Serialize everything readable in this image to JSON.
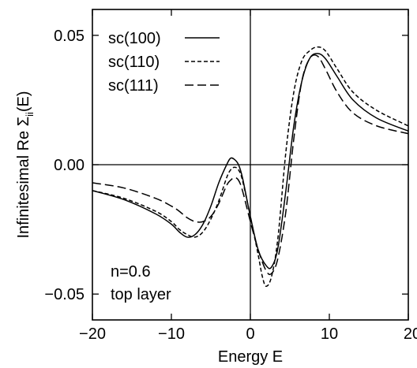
{
  "chart_data": {
    "type": "line",
    "xlabel": "Energy E",
    "ylabel": {
      "prefix": "Infinitesimal  Re ",
      "symbol": "Σ",
      "subscript": "ii",
      "suffix": "(E)"
    },
    "xlim": [
      -20,
      20
    ],
    "ylim": [
      -0.06,
      0.06
    ],
    "xticks": [
      -20,
      -10,
      0,
      10,
      20
    ],
    "xtick_labels": [
      "−20",
      "−10",
      "0",
      "10",
      "20"
    ],
    "yticks": [
      -0.05,
      0.0,
      0.05
    ],
    "ytick_labels": [
      "−0.05",
      "0.00",
      "0.05"
    ],
    "reference_lines": {
      "y": 0,
      "x": 0
    },
    "grid": false,
    "legend_position": "top-left",
    "annotations": [
      "n=0.6",
      "top layer"
    ],
    "series": [
      {
        "name": "sc(100)",
        "dash": "solid",
        "x": [
          -20,
          -16,
          -12,
          -10,
          -9,
          -8,
          -7,
          -6,
          -5,
          -4,
          -3,
          -2.5,
          -2,
          -1.5,
          -1,
          0,
          1,
          2,
          2.7,
          3.5,
          4.5,
          5.5,
          6.5,
          7.5,
          8.5,
          9.5,
          11,
          13,
          16,
          20
        ],
        "y": [
          -0.01,
          -0.0135,
          -0.019,
          -0.023,
          -0.026,
          -0.028,
          -0.027,
          -0.023,
          -0.016,
          -0.007,
          0.0,
          0.0025,
          0.002,
          0.0,
          -0.005,
          -0.02,
          -0.033,
          -0.039,
          -0.0395,
          -0.032,
          -0.01,
          0.015,
          0.032,
          0.041,
          0.043,
          0.041,
          0.034,
          0.025,
          0.018,
          0.013
        ]
      },
      {
        "name": "sc(110)",
        "dash": "short-dash",
        "x": [
          -20,
          -16,
          -12,
          -10,
          -9,
          -8,
          -7,
          -6,
          -5,
          -4,
          -3,
          -2.5,
          -2,
          -1.5,
          -1,
          0,
          1,
          1.5,
          2,
          2.7,
          3.5,
          4.5,
          5.5,
          6.5,
          7.5,
          8.5,
          9.5,
          11,
          13,
          16,
          20
        ],
        "y": [
          -0.01,
          -0.013,
          -0.018,
          -0.022,
          -0.025,
          -0.027,
          -0.028,
          -0.026,
          -0.021,
          -0.014,
          -0.005,
          -0.002,
          -0.001,
          -0.002,
          -0.006,
          -0.02,
          -0.035,
          -0.043,
          -0.047,
          -0.043,
          -0.028,
          0.005,
          0.028,
          0.04,
          0.044,
          0.0455,
          0.044,
          0.037,
          0.028,
          0.021,
          0.015
        ]
      },
      {
        "name": "sc(111)",
        "dash": "long-dash",
        "x": [
          -20,
          -16,
          -12,
          -10,
          -9,
          -8,
          -7,
          -6,
          -5,
          -4,
          -3,
          -2.5,
          -2,
          -1.5,
          -1,
          0,
          1,
          2,
          2.7,
          3.5,
          4.5,
          5.5,
          6.5,
          7.5,
          8.5,
          9.5,
          11,
          13,
          16,
          20
        ],
        "y": [
          -0.007,
          -0.009,
          -0.013,
          -0.016,
          -0.018,
          -0.0205,
          -0.022,
          -0.022,
          -0.02,
          -0.015,
          -0.008,
          -0.006,
          -0.005,
          -0.006,
          -0.01,
          -0.022,
          -0.033,
          -0.041,
          -0.042,
          -0.036,
          -0.018,
          0.01,
          0.032,
          0.041,
          0.042,
          0.037,
          0.028,
          0.02,
          0.015,
          0.012
        ]
      }
    ]
  }
}
